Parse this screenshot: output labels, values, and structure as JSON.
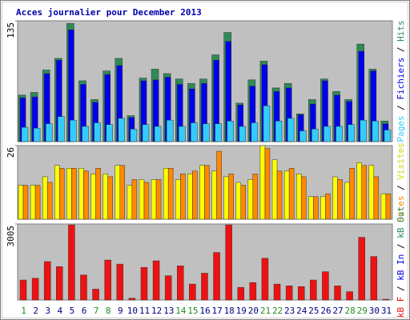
{
  "chart_data": {
    "type": "bar",
    "title": "Acces journalier pour December 2013",
    "categories": [
      "1",
      "2",
      "3",
      "4",
      "5",
      "6",
      "7",
      "8",
      "9",
      "10",
      "11",
      "12",
      "13",
      "14",
      "15",
      "16",
      "17",
      "18",
      "19",
      "20",
      "21",
      "22",
      "23",
      "24",
      "25",
      "26",
      "27",
      "28",
      "29",
      "30",
      "31"
    ],
    "category_colors": [
      "#228b22",
      "#000080",
      "#000080",
      "#000080",
      "#000080",
      "#000080",
      "#228b22",
      "#228b22",
      "#000080",
      "#000080",
      "#000080",
      "#000080",
      "#000080",
      "#228b22",
      "#228b22",
      "#000080",
      "#000080",
      "#000080",
      "#000080",
      "#000080",
      "#228b22",
      "#228b22",
      "#000080",
      "#000080",
      "#000080",
      "#000080",
      "#000080",
      "#228b22",
      "#228b22",
      "#000080",
      "#000080"
    ],
    "panels": [
      {
        "ylim": [
          0,
          135
        ],
        "yticks": [
          135
        ],
        "series": [
          {
            "name": "Pages",
            "color": "#33ccff",
            "values": [
              16,
              15,
              20,
              28,
              24,
              17,
              21,
              19,
              26,
              14,
              19,
              17,
              24,
              17,
              21,
              20,
              20,
              23,
              17,
              21,
              40,
              23,
              26,
              12,
              14,
              17,
              17,
              19,
              24,
              23,
              13
            ]
          },
          {
            "name": "Fichiers",
            "color": "#0000ee",
            "values": [
              49,
              50,
              76,
              91,
              125,
              64,
              44,
              75,
              85,
              27,
              68,
              69,
              72,
              64,
              59,
              65,
              91,
              112,
              41,
              62,
              86,
              56,
              60,
              30,
              42,
              68,
              52,
              45,
              101,
              79,
              20
            ]
          },
          {
            "name": "Hits",
            "color": "#2e8b57",
            "values": [
              52,
              55,
              80,
              93,
              132,
              68,
              47,
              79,
              93,
              29,
              71,
              81,
              76,
              70,
              65,
              70,
              97,
              122,
              43,
              69,
              90,
              60,
              65,
              31,
              47,
              70,
              56,
              47,
              109,
              81,
              23
            ]
          }
        ]
      },
      {
        "ylim": [
          0,
          26
        ],
        "yticks": [
          26
        ],
        "series": [
          {
            "name": "Sites",
            "color": "#ff8800",
            "values": [
              12,
              12,
              13,
              18,
              18,
              17,
              18,
              15,
              19,
              14,
              13,
              14,
              18,
              16,
              17,
              19,
              24,
              16,
              12,
              16,
              25,
              17,
              18,
              15,
              8,
              9,
              14,
              18,
              19,
              15,
              9
            ]
          },
          {
            "name": "Visites",
            "color": "#ffff00",
            "values": [
              12,
              12,
              15,
              19,
              18,
              18,
              16,
              16,
              19,
              12,
              14,
              14,
              18,
              14,
              16,
              19,
              17,
              15,
              13,
              14,
              26,
              21,
              17,
              16,
              8,
              8,
              15,
              13,
              20,
              19,
              9
            ]
          }
        ]
      },
      {
        "ylim": [
          0,
          3005
        ],
        "yticks": [
          3005
        ],
        "series": [
          {
            "name": "kB F",
            "color": "#ee1111",
            "values": [
              790,
              860,
              1520,
              1320,
              2970,
              990,
              430,
              1580,
              1420,
              70,
              1290,
              1550,
              960,
              1350,
              630,
              1060,
              1880,
              2970,
              500,
              690,
              1650,
              630,
              560,
              530,
              790,
              1120,
              560,
              330,
              2480,
              1720,
              30
            ]
          },
          {
            "name": "kB In",
            "color": "#0000ee",
            "values": [
              0,
              0,
              0,
              0,
              0,
              0,
              0,
              0,
              0,
              0,
              0,
              0,
              0,
              0,
              0,
              0,
              0,
              0,
              0,
              0,
              0,
              0,
              0,
              0,
              0,
              0,
              0,
              0,
              0,
              0,
              0
            ]
          },
          {
            "name": "kB Out",
            "color": "#2e8b57",
            "values": [
              0,
              0,
              0,
              0,
              0,
              0,
              0,
              0,
              0,
              0,
              0,
              0,
              0,
              0,
              0,
              0,
              0,
              0,
              0,
              0,
              0,
              0,
              0,
              0,
              0,
              0,
              0,
              0,
              0,
              0,
              0
            ]
          }
        ]
      }
    ]
  }
}
